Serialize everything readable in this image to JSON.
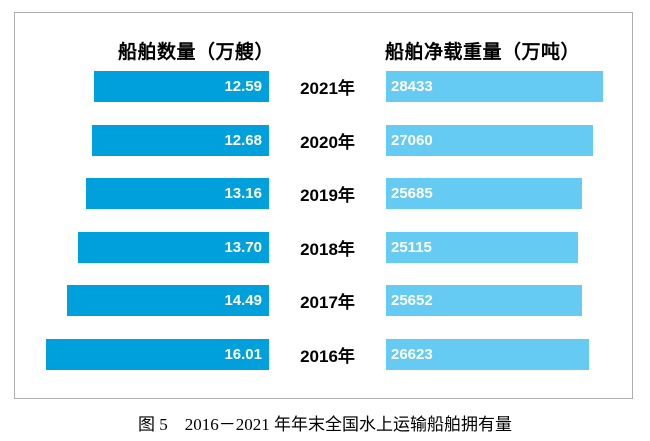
{
  "header": {
    "left": "船舶数量（万艘）",
    "right": "船舶净载重量（万吨）"
  },
  "caption": "图 5　2016－2021 年年末全国水上运输船舶拥有量",
  "rows": [
    {
      "year": "2021年",
      "count": "12.59",
      "weight": "28433"
    },
    {
      "year": "2020年",
      "count": "12.68",
      "weight": "27060"
    },
    {
      "year": "2019年",
      "count": "13.16",
      "weight": "25685"
    },
    {
      "year": "2018年",
      "count": "13.70",
      "weight": "25115"
    },
    {
      "year": "2017年",
      "count": "14.49",
      "weight": "25652"
    },
    {
      "year": "2016年",
      "count": "16.01",
      "weight": "26623"
    }
  ],
  "chart_data": {
    "type": "bar",
    "title": "图 5　2016－2021 年年末全国水上运输船舶拥有量",
    "categories": [
      "2021年",
      "2020年",
      "2019年",
      "2018年",
      "2017年",
      "2016年"
    ],
    "series": [
      {
        "name": "船舶数量（万艘）",
        "values": [
          12.59,
          12.68,
          13.16,
          13.7,
          14.49,
          16.01
        ]
      },
      {
        "name": "船舶净载重量（万吨）",
        "values": [
          28433,
          27060,
          25685,
          25115,
          25652,
          26623
        ]
      }
    ],
    "layout": {
      "orientation": "horizontal",
      "left_series_alignment": "right",
      "right_series_alignment": "left",
      "value_labels": "inside",
      "grid": false,
      "legend_position": "top-as-column-headers"
    },
    "colors": {
      "ship_count_bar": "#00A0DC",
      "deadweight_bar": "#66CBF2",
      "value_label": "#ffffff",
      "text": "#000000",
      "box_border": "#adadad"
    }
  }
}
